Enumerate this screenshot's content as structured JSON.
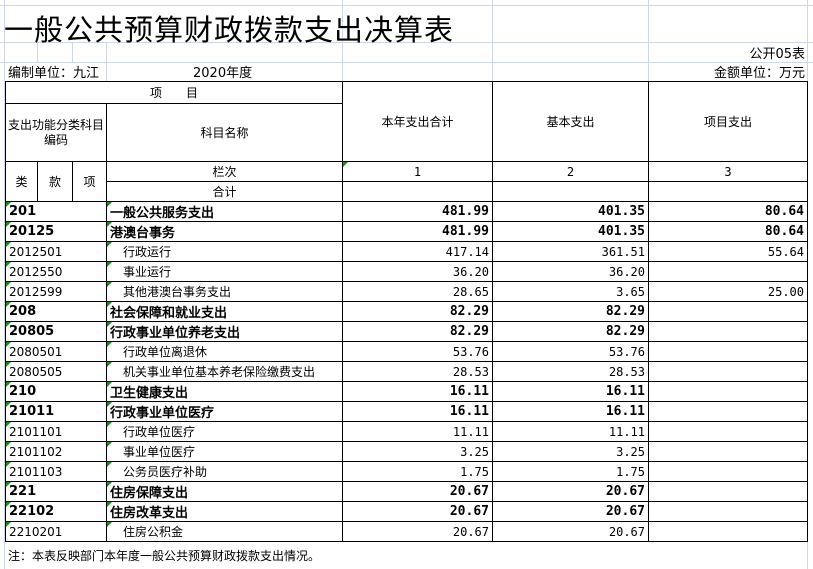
{
  "title": "一般公共预算财政拨款支出决算表",
  "table_no": "公开05表",
  "unit_label": "编制单位：九江",
  "year": "2020年度",
  "currency": "金额单位：万元",
  "header": {
    "item": "项　　目",
    "code_group": "支出功能分类科目编码",
    "name": "科目名称",
    "col1": "本年支出合计",
    "col2": "基本支出",
    "col3": "项目支出",
    "lei": "类",
    "kuan": "款",
    "xiang": "项",
    "lanci": "栏次",
    "n1": "1",
    "n2": "2",
    "n3": "3",
    "total": "合计"
  },
  "rows": [
    {
      "code": "201",
      "name": "一般公共服务支出",
      "total": "481.99",
      "basic": "401.35",
      "project": "80.64",
      "bold": true
    },
    {
      "code": "20125",
      "name": "港澳台事务",
      "total": "481.99",
      "basic": "401.35",
      "project": "80.64",
      "bold": true
    },
    {
      "code": "2012501",
      "name": "行政运行",
      "total": "417.14",
      "basic": "361.51",
      "project": "55.64"
    },
    {
      "code": "2012550",
      "name": "事业运行",
      "total": "36.20",
      "basic": "36.20",
      "project": ""
    },
    {
      "code": "2012599",
      "name": "其他港澳台事务支出",
      "total": "28.65",
      "basic": "3.65",
      "project": "25.00"
    },
    {
      "code": "208",
      "name": "社会保障和就业支出",
      "total": "82.29",
      "basic": "82.29",
      "project": "",
      "bold": true
    },
    {
      "code": "20805",
      "name": "行政事业单位养老支出",
      "total": "82.29",
      "basic": "82.29",
      "project": "",
      "bold": true
    },
    {
      "code": "2080501",
      "name": "行政单位离退休",
      "total": "53.76",
      "basic": "53.76",
      "project": ""
    },
    {
      "code": "2080505",
      "name": "机关事业单位基本养老保险缴费支出",
      "total": "28.53",
      "basic": "28.53",
      "project": ""
    },
    {
      "code": "210",
      "name": "卫生健康支出",
      "total": "16.11",
      "basic": "16.11",
      "project": "",
      "bold": true
    },
    {
      "code": "21011",
      "name": "行政事业单位医疗",
      "total": "16.11",
      "basic": "16.11",
      "project": "",
      "bold": true
    },
    {
      "code": "2101101",
      "name": "行政单位医疗",
      "total": "11.11",
      "basic": "11.11",
      "project": ""
    },
    {
      "code": "2101102",
      "name": "事业单位医疗",
      "total": "3.25",
      "basic": "3.25",
      "project": ""
    },
    {
      "code": "2101103",
      "name": "公务员医疗补助",
      "total": "1.75",
      "basic": "1.75",
      "project": ""
    },
    {
      "code": "221",
      "name": "住房保障支出",
      "total": "20.67",
      "basic": "20.67",
      "project": "",
      "bold": true
    },
    {
      "code": "22102",
      "name": "住房改革支出",
      "total": "20.67",
      "basic": "20.67",
      "project": "",
      "bold": true
    },
    {
      "code": "2210201",
      "name": "住房公积金",
      "total": "20.67",
      "basic": "20.67",
      "project": ""
    }
  ],
  "note": "注：本表反映部门本年度一般公共预算财政拨款支出情况。"
}
